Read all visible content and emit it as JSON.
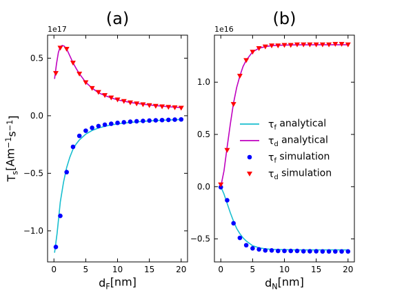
{
  "chart_data": [
    {
      "type": "line",
      "title": "(a)",
      "exponent_label": "1e17",
      "ylabel": "T_s[Am^{-1}s^{-1}]",
      "xlabel": "d_F[nm]",
      "xlim": [
        -1,
        21
      ],
      "ylim": [
        -1.27,
        0.7
      ],
      "xticks": [
        0,
        5,
        10,
        15,
        20
      ],
      "yticks": [
        -1.0,
        -0.5,
        0.0,
        0.5
      ],
      "tick_labels_x": [
        "0",
        "5",
        "10",
        "15",
        "20"
      ],
      "tick_labels_y": [
        "−1.0",
        "−0.5",
        "0.0",
        "0.5"
      ],
      "series": [
        {
          "name": "τ_f analytical",
          "kind": "line",
          "color": "#17becf",
          "x": [
            0.1,
            0.5,
            1,
            1.5,
            2,
            2.5,
            3,
            3.5,
            4,
            5,
            6,
            7,
            8,
            9,
            10,
            12,
            14,
            16,
            18,
            20
          ],
          "y": [
            -1.19,
            -1.02,
            -0.75,
            -0.58,
            -0.45,
            -0.36,
            -0.29,
            -0.245,
            -0.21,
            -0.16,
            -0.128,
            -0.107,
            -0.092,
            -0.08,
            -0.071,
            -0.058,
            -0.049,
            -0.042,
            -0.037,
            -0.033
          ]
        },
        {
          "name": "τ_d analytical",
          "kind": "line",
          "color": "#bf00bf",
          "x": [
            0.1,
            0.4,
            0.7,
            1.0,
            1.3,
            1.6,
            2,
            2.5,
            3,
            3.5,
            4,
            5,
            6,
            7,
            8,
            9,
            10,
            12,
            14,
            16,
            18,
            20
          ],
          "y": [
            0.32,
            0.45,
            0.55,
            0.6,
            0.61,
            0.605,
            0.58,
            0.52,
            0.46,
            0.41,
            0.365,
            0.29,
            0.24,
            0.2,
            0.175,
            0.155,
            0.138,
            0.115,
            0.1,
            0.088,
            0.078,
            0.071
          ]
        },
        {
          "name": "τ_f simulation",
          "kind": "scatter",
          "marker": "circle",
          "color": "#0000ff",
          "x": [
            0.3,
            1.0,
            2.0,
            3.0,
            4.0,
            5.0,
            6.0,
            7.0,
            8.0,
            9.0,
            10.0,
            11.0,
            12.0,
            13.0,
            14.0,
            15.0,
            16.0,
            17.0,
            18.0,
            19.0,
            20.0
          ],
          "y": [
            -1.14,
            -0.87,
            -0.49,
            -0.27,
            -0.175,
            -0.13,
            -0.105,
            -0.09,
            -0.078,
            -0.07,
            -0.062,
            -0.057,
            -0.052,
            -0.048,
            -0.045,
            -0.042,
            -0.04,
            -0.038,
            -0.036,
            -0.034,
            -0.032
          ]
        },
        {
          "name": "τ_d simulation",
          "kind": "scatter",
          "marker": "triangle-down",
          "color": "#ff0000",
          "x": [
            0.3,
            1.0,
            2.0,
            3.0,
            4.0,
            5.0,
            6.0,
            7.0,
            8.0,
            9.0,
            10.0,
            11.0,
            12.0,
            13.0,
            14.0,
            15.0,
            16.0,
            17.0,
            18.0,
            19.0,
            20.0
          ],
          "y": [
            0.37,
            0.59,
            0.58,
            0.46,
            0.365,
            0.29,
            0.24,
            0.205,
            0.178,
            0.157,
            0.14,
            0.127,
            0.115,
            0.106,
            0.098,
            0.091,
            0.085,
            0.08,
            0.076,
            0.072,
            0.068
          ]
        }
      ]
    },
    {
      "type": "line",
      "title": "(b)",
      "exponent_label": "1e16",
      "ylabel": "",
      "xlabel": "d_N[nm]",
      "xlim": [
        -1,
        21
      ],
      "ylim": [
        -0.72,
        1.45
      ],
      "xticks": [
        0,
        5,
        10,
        15,
        20
      ],
      "yticks": [
        -0.5,
        0.0,
        0.5,
        1.0
      ],
      "tick_labels_x": [
        "0",
        "5",
        "10",
        "15",
        "20"
      ],
      "tick_labels_y": [
        "−0.5",
        "0.0",
        "0.5",
        "1.0"
      ],
      "legend": {
        "position": "center-right",
        "entries": [
          {
            "label": "τ_f analytical",
            "kind": "line",
            "color": "#17becf"
          },
          {
            "label": "τ_d analytical",
            "kind": "line",
            "color": "#bf00bf"
          },
          {
            "label": "τ_f simulation",
            "kind": "circle",
            "color": "#0000ff"
          },
          {
            "label": "τ_d simulation",
            "kind": "triangle-down",
            "color": "#ff0000"
          }
        ]
      },
      "series": [
        {
          "name": "τ_f analytical",
          "kind": "line",
          "color": "#17becf",
          "x": [
            0,
            0.5,
            1,
            1.5,
            2,
            2.5,
            3,
            3.5,
            4,
            5,
            6,
            7,
            8,
            10,
            12,
            15,
            18,
            20
          ],
          "y": [
            0.0,
            -0.07,
            -0.16,
            -0.25,
            -0.33,
            -0.4,
            -0.45,
            -0.49,
            -0.52,
            -0.565,
            -0.585,
            -0.595,
            -0.6,
            -0.603,
            -0.605,
            -0.605,
            -0.605,
            -0.605
          ]
        },
        {
          "name": "τ_d analytical",
          "kind": "line",
          "color": "#bf00bf",
          "x": [
            0,
            0.5,
            1,
            1.5,
            2,
            2.5,
            3,
            3.5,
            4,
            5,
            6,
            7,
            8,
            10,
            12,
            15,
            18,
            20
          ],
          "y": [
            0.0,
            0.15,
            0.38,
            0.6,
            0.8,
            0.95,
            1.06,
            1.15,
            1.21,
            1.29,
            1.325,
            1.34,
            1.35,
            1.355,
            1.357,
            1.358,
            1.358,
            1.358
          ]
        },
        {
          "name": "τ_f simulation",
          "kind": "scatter",
          "marker": "circle",
          "color": "#0000ff",
          "x": [
            0,
            1,
            2,
            3,
            4,
            5,
            6,
            7,
            8,
            9,
            10,
            11,
            12,
            13,
            14,
            15,
            16,
            17,
            18,
            19,
            20
          ],
          "y": [
            -0.005,
            -0.13,
            -0.35,
            -0.49,
            -0.56,
            -0.59,
            -0.6,
            -0.61,
            -0.61,
            -0.615,
            -0.615,
            -0.615,
            -0.615,
            -0.618,
            -0.618,
            -0.618,
            -0.62,
            -0.62,
            -0.62,
            -0.62,
            -0.62
          ]
        },
        {
          "name": "τ_d simulation",
          "kind": "scatter",
          "marker": "triangle-down",
          "color": "#ff0000",
          "x": [
            0,
            1,
            2,
            3,
            4,
            5,
            6,
            7,
            8,
            9,
            10,
            11,
            12,
            13,
            14,
            15,
            16,
            17,
            18,
            19,
            20
          ],
          "y": [
            0.02,
            0.35,
            0.79,
            1.06,
            1.21,
            1.29,
            1.325,
            1.34,
            1.35,
            1.35,
            1.355,
            1.355,
            1.36,
            1.36,
            1.36,
            1.36,
            1.36,
            1.36,
            1.365,
            1.365,
            1.36
          ]
        }
      ]
    }
  ]
}
